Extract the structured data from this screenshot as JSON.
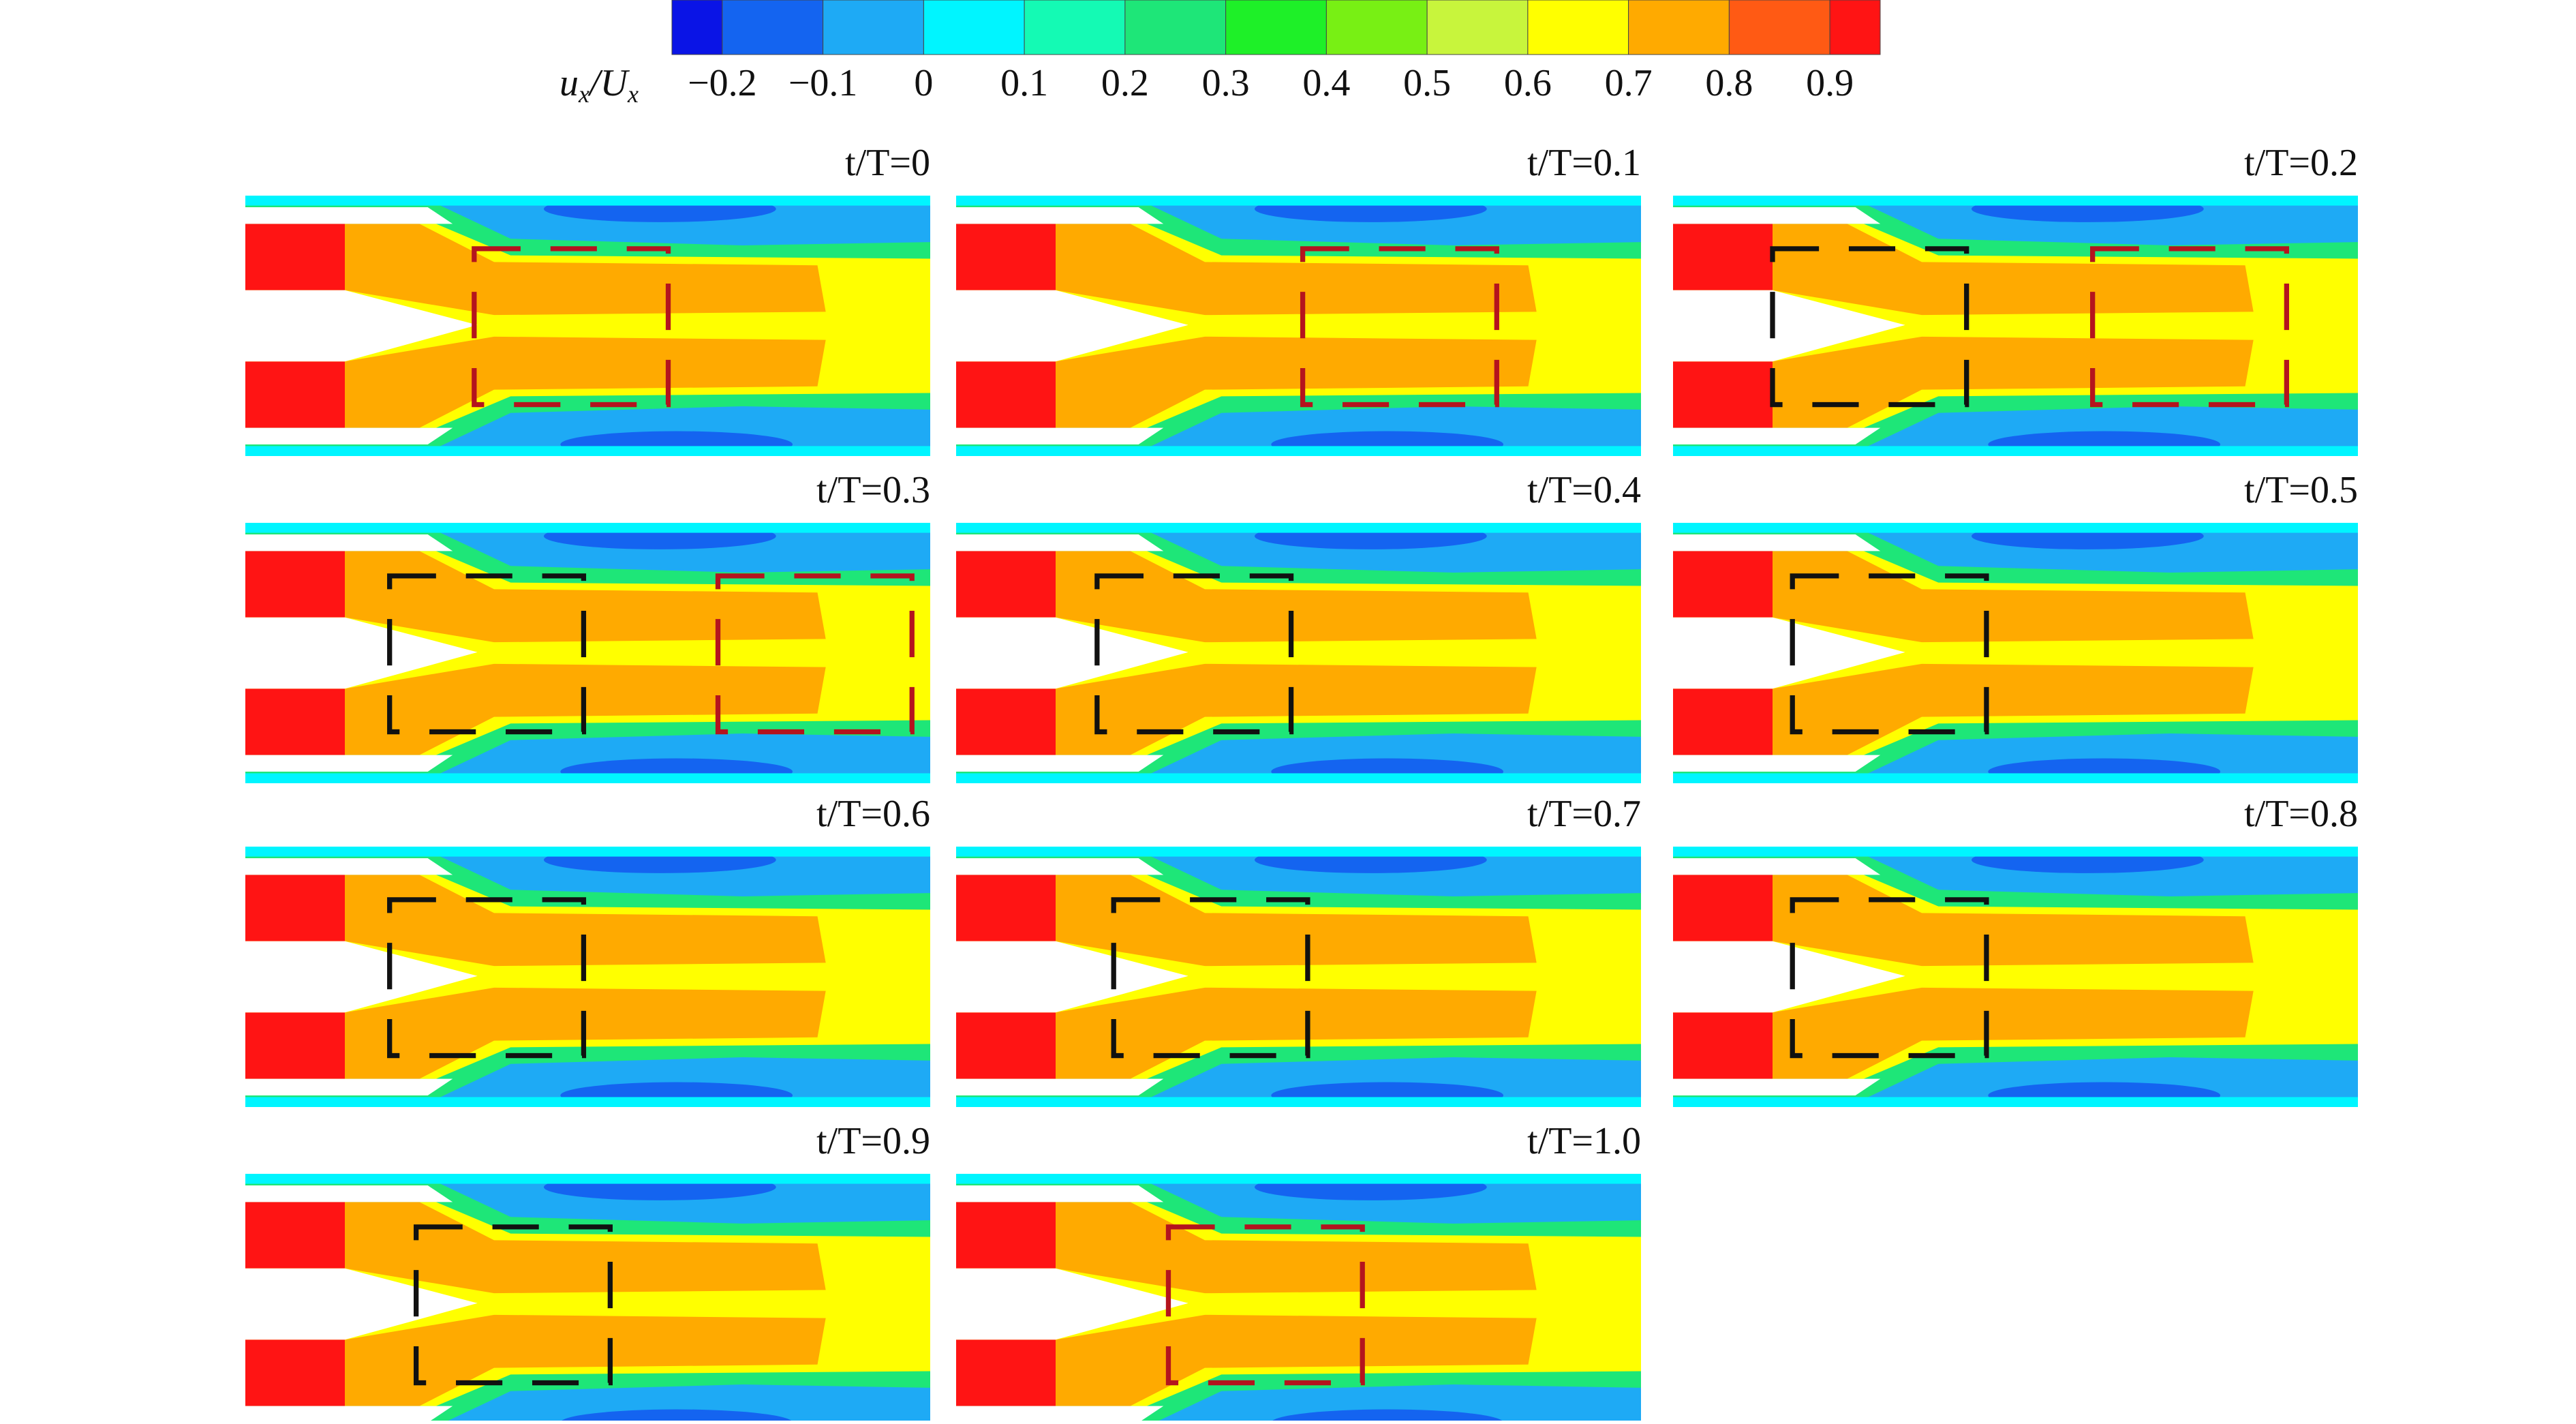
{
  "colorbar": {
    "label": {
      "var": "u",
      "var_sub": "x",
      "ref": "/U",
      "ref_sub": "x"
    },
    "tick_labels": [
      "−0.2",
      "−0.1",
      "0",
      "0.1",
      "0.2",
      "0.3",
      "0.4",
      "0.5",
      "0.6",
      "0.7",
      "0.8",
      "0.9"
    ],
    "colors": [
      "#0a14e6",
      "#1464f0",
      "#1eaaf5",
      "#00f5ff",
      "#14fab4",
      "#1ee678",
      "#1ef028",
      "#78f014",
      "#c8f53c",
      "#ffff00",
      "#ffaa00",
      "#ff5a14",
      "#ff1414"
    ]
  },
  "panels": [
    {
      "label": "t/T=0"
    },
    {
      "label": "t/T=0.1"
    },
    {
      "label": "t/T=0.2"
    },
    {
      "label": "t/T=0.3"
    },
    {
      "label": "t/T=0.4"
    },
    {
      "label": "t/T=0.5"
    },
    {
      "label": "t/T=0.6"
    },
    {
      "label": "t/T=0.7"
    },
    {
      "label": "t/T=0.8"
    },
    {
      "label": "t/T=0.9"
    },
    {
      "label": "t/T=1.0"
    }
  ]
}
